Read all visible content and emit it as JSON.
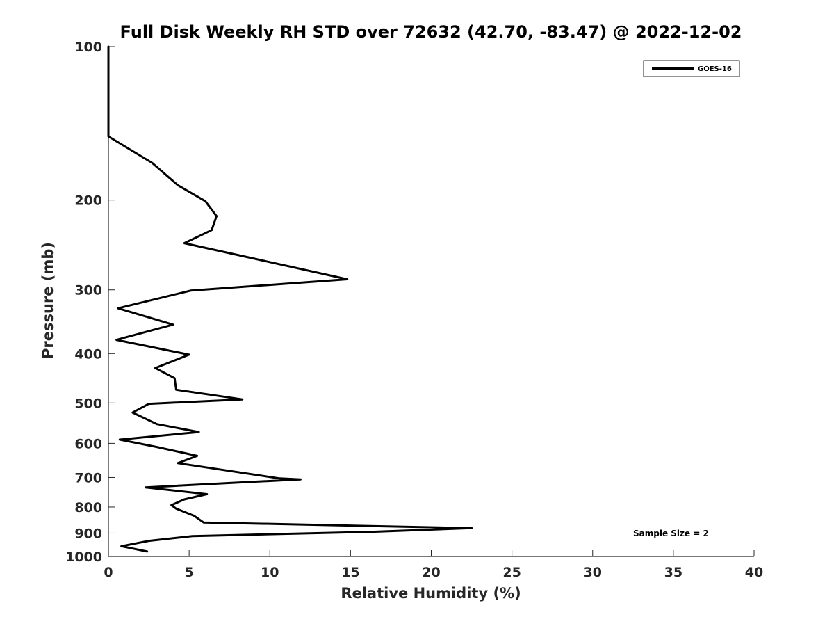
{
  "chart_data": {
    "type": "line",
    "title": "Full Disk Weekly RH STD over 72632 (42.70, -83.47) @ 2022-12-02",
    "xlabel": "Relative Humidity (%)",
    "ylabel": "Pressure (mb)",
    "xlim": [
      0,
      40
    ],
    "ylim": [
      100,
      1000
    ],
    "yscale": "log",
    "y_reversed": true,
    "x_ticks": [
      0,
      5,
      10,
      15,
      20,
      25,
      30,
      35,
      40
    ],
    "y_ticks": [
      100,
      200,
      300,
      400,
      500,
      600,
      700,
      800,
      900,
      1000
    ],
    "grid": false,
    "legend_position": "top-right",
    "annotation": "Sample Size = 2",
    "series": [
      {
        "name": "GOES-16",
        "color": "#000000",
        "points": [
          [
            0,
            100
          ],
          [
            0,
            125
          ],
          [
            0,
            150
          ],
          [
            2.7,
            169
          ],
          [
            4.3,
            187
          ],
          [
            6.0,
            201
          ],
          [
            6.7,
            215
          ],
          [
            6.4,
            229
          ],
          [
            4.7,
            243
          ],
          [
            14.8,
            286
          ],
          [
            5.1,
            301
          ],
          [
            0.6,
            326
          ],
          [
            4.0,
            351
          ],
          [
            0.5,
            376
          ],
          [
            5.0,
            402
          ],
          [
            2.9,
            427
          ],
          [
            4.1,
            447
          ],
          [
            4.2,
            471
          ],
          [
            8.3,
            492
          ],
          [
            2.5,
            502
          ],
          [
            1.5,
            522
          ],
          [
            3.0,
            550
          ],
          [
            5.6,
            570
          ],
          [
            0.7,
            590
          ],
          [
            3.0,
            610
          ],
          [
            5.5,
            635
          ],
          [
            4.3,
            656
          ],
          [
            10.6,
            703
          ],
          [
            11.9,
            706
          ],
          [
            2.3,
            732
          ],
          [
            6.1,
            755
          ],
          [
            4.7,
            773
          ],
          [
            3.9,
            793
          ],
          [
            4.2,
            806
          ],
          [
            5.3,
            832
          ],
          [
            5.9,
            858
          ],
          [
            22.5,
            880
          ],
          [
            16.2,
            895
          ],
          [
            5.2,
            912
          ],
          [
            2.5,
            932
          ],
          [
            0.8,
            955
          ],
          [
            2.4,
            978
          ]
        ]
      }
    ]
  }
}
